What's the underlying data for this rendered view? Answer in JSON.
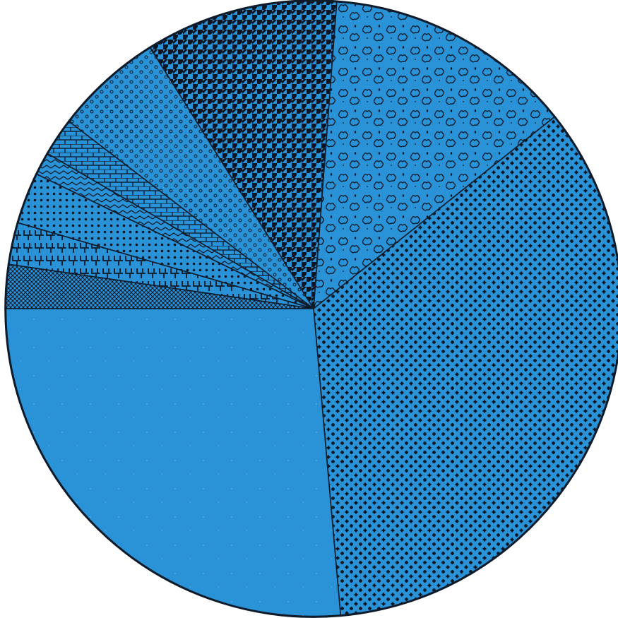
{
  "chart_data": {
    "type": "pie",
    "title": "",
    "start_angle_deg": 180,
    "direction": "clockwise",
    "legend": "none",
    "colors": {
      "base": "#2a93d8",
      "outline": "#0d1b2a",
      "ink": "#0a1624"
    },
    "slices": [
      {
        "value": 2.3,
        "pattern": "crosshatch"
      },
      {
        "value": 2.2,
        "pattern": "zigzag"
      },
      {
        "value": 2.7,
        "pattern": "dots-dense"
      },
      {
        "value": 1.2,
        "pattern": "chevron-lines"
      },
      {
        "value": 2.0,
        "pattern": "brick"
      },
      {
        "value": 5.7,
        "pattern": "circles"
      },
      {
        "value": 10.1,
        "pattern": "houndstooth"
      },
      {
        "value": 13.1,
        "pattern": "cloud"
      },
      {
        "value": 34.3,
        "pattern": "crosses"
      },
      {
        "value": 26.4,
        "pattern": "solid"
      }
    ]
  }
}
